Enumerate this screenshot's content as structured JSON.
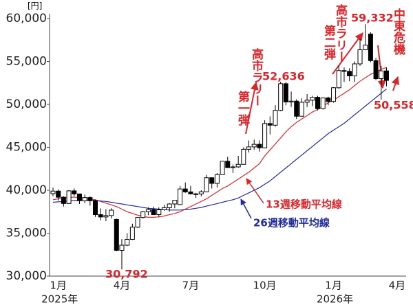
{
  "chart_data": {
    "type": "candlestick",
    "y_unit_label": "[円]",
    "categories": [
      null,
      "1月",
      null,
      null,
      null,
      null,
      null,
      null,
      null,
      null,
      null,
      null,
      null,
      "4月",
      null,
      null,
      null,
      null,
      null,
      null,
      null,
      null,
      null,
      null,
      null,
      null,
      "7月",
      null,
      null,
      null,
      null,
      null,
      null,
      null,
      null,
      null,
      null,
      null,
      null,
      null,
      "10月",
      null,
      null,
      null,
      null,
      null,
      null,
      null,
      null,
      null,
      null,
      null,
      null,
      "1月",
      null,
      null,
      null,
      null,
      null,
      null,
      null,
      null,
      null,
      null,
      null,
      "4月"
    ],
    "year_labels": [
      "2025年",
      "2026年"
    ],
    "ylim": [
      30000,
      60000
    ],
    "yticks": [
      {
        "value": 30000,
        "label": "30,000"
      },
      {
        "value": 35000,
        "label": "35,000"
      },
      {
        "value": 40000,
        "label": "40,000"
      },
      {
        "value": 45000,
        "label": "45,000"
      },
      {
        "value": 50000,
        "label": "50,000"
      },
      {
        "value": 55000,
        "label": "55,000"
      },
      {
        "value": 60000,
        "label": "60,000"
      }
    ],
    "up_color": "#ffffff",
    "down_color": "#000000",
    "open": [
      39600,
      39900,
      39190,
      38450,
      39930,
      39570,
      38780,
      39150,
      38780,
      37160,
      36890,
      37050,
      36600,
      33000,
      33600,
      34280,
      35700,
      36830,
      37500,
      37750,
      37160,
      37720,
      37970,
      38400,
      38330,
      40150,
      39810,
      39580,
      39570,
      39820,
      41460,
      40800,
      41820,
      43380,
      42630,
      42720,
      43020,
      44770,
      45050,
      45350,
      44940,
      47770,
      47580,
      49300,
      52410,
      50280,
      50380,
      48620,
      50250,
      50490,
      50830,
      49500,
      50750,
      50340,
      51940,
      53940,
      53850,
      53320,
      54720,
      56360,
      58200,
      55100,
      53000,
      53900,
      null,
      null
    ],
    "high": [
      40300,
      40100,
      39300,
      40000,
      40200,
      39600,
      39500,
      39300,
      38900,
      37900,
      37800,
      37900,
      36700,
      34300,
      35000,
      36100,
      36900,
      37600,
      38000,
      38100,
      38000,
      38300,
      38500,
      38600,
      40500,
      40900,
      40500,
      39700,
      40000,
      41800,
      41500,
      42000,
      43400,
      43900,
      43000,
      44000,
      45000,
      45800,
      45900,
      45800,
      48150,
      48600,
      49900,
      52636,
      52600,
      51500,
      50600,
      50700,
      51200,
      51000,
      51000,
      50800,
      50900,
      52000,
      54500,
      54300,
      54200,
      55000,
      57600,
      59332,
      58400,
      55400,
      54500,
      54300,
      null,
      null
    ],
    "low": [
      39300,
      38800,
      38100,
      38400,
      39300,
      38400,
      38500,
      38200,
      36900,
      36500,
      36400,
      36700,
      32900,
      30792,
      33500,
      34200,
      35600,
      36700,
      37100,
      37300,
      36900,
      37600,
      37500,
      37900,
      38300,
      39700,
      39500,
      39100,
      39300,
      39800,
      40200,
      40300,
      41800,
      42700,
      42000,
      42600,
      43000,
      44400,
      44700,
      44500,
      44900,
      46500,
      47400,
      49200,
      49900,
      49700,
      48300,
      48600,
      49700,
      49800,
      49300,
      49400,
      49900,
      50200,
      51800,
      52600,
      52700,
      52600,
      54500,
      56300,
      54900,
      52800,
      50558,
      52100,
      null,
      null
    ],
    "close": [
      39900,
      39190,
      38450,
      39930,
      39570,
      38780,
      39150,
      38780,
      37160,
      36890,
      37050,
      37680,
      33000,
      33600,
      34280,
      35700,
      36830,
      37500,
      37750,
      37160,
      37720,
      37970,
      38400,
      38830,
      40150,
      39810,
      39580,
      39570,
      39820,
      41460,
      40800,
      41820,
      43380,
      42630,
      42720,
      43020,
      44770,
      45050,
      45350,
      44940,
      47770,
      47580,
      49300,
      52410,
      50280,
      50380,
      48620,
      50250,
      50490,
      50830,
      49500,
      50750,
      50340,
      51940,
      53940,
      53850,
      53320,
      54720,
      56360,
      56900,
      55100,
      53000,
      53900,
      52800,
      null,
      null
    ],
    "series": [
      {
        "name": "13週移動平均線",
        "color": "#d9262b",
        "values": [
          38900,
          39000,
          39100,
          39150,
          39200,
          39150,
          39100,
          39000,
          38900,
          38700,
          38500,
          38300,
          38100,
          37800,
          37500,
          37300,
          37100,
          36950,
          36850,
          36850,
          36900,
          37000,
          37150,
          37300,
          37500,
          37800,
          38100,
          38400,
          38700,
          39000,
          39400,
          39800,
          40200,
          40500,
          40900,
          41300,
          41700,
          42100,
          42600,
          43100,
          44000,
          44700,
          45400,
          46100,
          46800,
          47400,
          47900,
          48300,
          48700,
          49100,
          49400,
          49800,
          50200,
          50500,
          50900,
          51300,
          51700,
          52200,
          52700,
          53100,
          53500,
          53800,
          54100,
          54300,
          null,
          null
        ]
      },
      {
        "name": "26週移動平均線",
        "color": "#1f2a9c",
        "values": [
          38600,
          38650,
          38700,
          38750,
          38800,
          38850,
          38850,
          38850,
          38800,
          38750,
          38700,
          38600,
          38500,
          38400,
          38300,
          38200,
          38100,
          38000,
          37900,
          37850,
          37800,
          37750,
          37700,
          37700,
          37700,
          37750,
          37800,
          37900,
          38000,
          38150,
          38300,
          38450,
          38600,
          38750,
          38900,
          39100,
          39400,
          39700,
          40000,
          40300,
          40700,
          41100,
          41600,
          42100,
          42600,
          43100,
          43600,
          44100,
          44600,
          45100,
          45600,
          46100,
          46600,
          47000,
          47400,
          47800,
          48300,
          48800,
          49300,
          49800,
          50300,
          50800,
          51300,
          51800,
          null,
          null
        ]
      }
    ],
    "annotations": [
      {
        "value": 30792,
        "label": "30,792"
      },
      {
        "value": 52636,
        "label": "52,636"
      },
      {
        "value": 59332,
        "label": "59,332"
      },
      {
        "value": 50558,
        "label": "50,558"
      }
    ],
    "notes": [
      {
        "lines": [
          "高市ラリー",
          "第一弾"
        ]
      },
      {
        "lines": [
          "高市ラリー",
          "第二弾"
        ]
      },
      {
        "lines": [
          "中東危機"
        ]
      }
    ]
  }
}
